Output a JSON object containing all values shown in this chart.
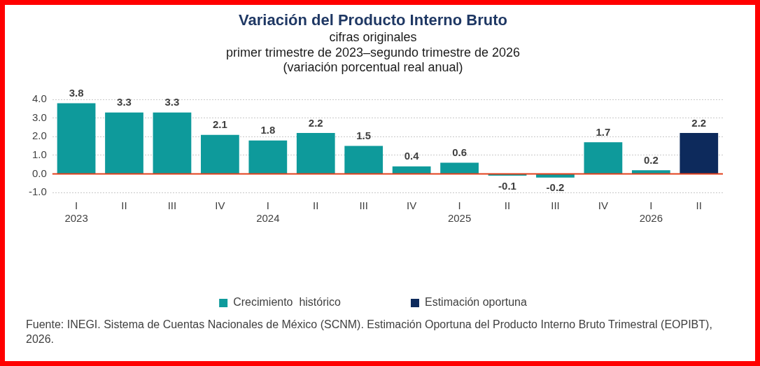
{
  "chart_data": {
    "type": "bar",
    "title": "Variación del Producto Interno Bruto",
    "subtitle": "cifras originales\nprimer trimestre de 2023–segundo trimestre de 2026\n(variación porcentual real anual)",
    "categories": [
      "I\n2023",
      "II",
      "III",
      "IV",
      "I\n2024",
      "II",
      "III",
      "IV",
      "I\n2025",
      "II",
      "III",
      "IV",
      "I\n2026",
      "II"
    ],
    "series": [
      {
        "name": "Crecimiento  histórico",
        "color": "#0e9a9b",
        "values": [
          3.8,
          3.3,
          3.3,
          2.1,
          1.8,
          2.2,
          1.5,
          0.4,
          0.6,
          -0.1,
          -0.2,
          1.7,
          0.2,
          null
        ]
      },
      {
        "name": "Estimación oportuna",
        "color": "#0d2a5c",
        "values": [
          null,
          null,
          null,
          null,
          null,
          null,
          null,
          null,
          null,
          null,
          null,
          null,
          null,
          2.2
        ]
      }
    ],
    "ylim": [
      -1,
      4
    ],
    "yticks": [
      {
        "value": -1,
        "label": "-1.0"
      },
      {
        "value": 0,
        "label": "0.0"
      },
      {
        "value": 1,
        "label": "1.0"
      },
      {
        "value": 2,
        "label": "2.0"
      },
      {
        "value": 3,
        "label": "3.0"
      },
      {
        "value": 4,
        "label": "4.0"
      }
    ],
    "grid": "y",
    "legend": "bottom",
    "data_labels": true,
    "ref_lines": [
      {
        "axis": "y",
        "value": 0,
        "color": "#e2401c"
      }
    ],
    "annotations": [
      "Fuente: INEGI. Sistema de Cuentas Nacionales de México (SCNM). Estimación Oportuna del Producto Interno Bruto Trimestral (EOPIBT), 2026."
    ]
  }
}
